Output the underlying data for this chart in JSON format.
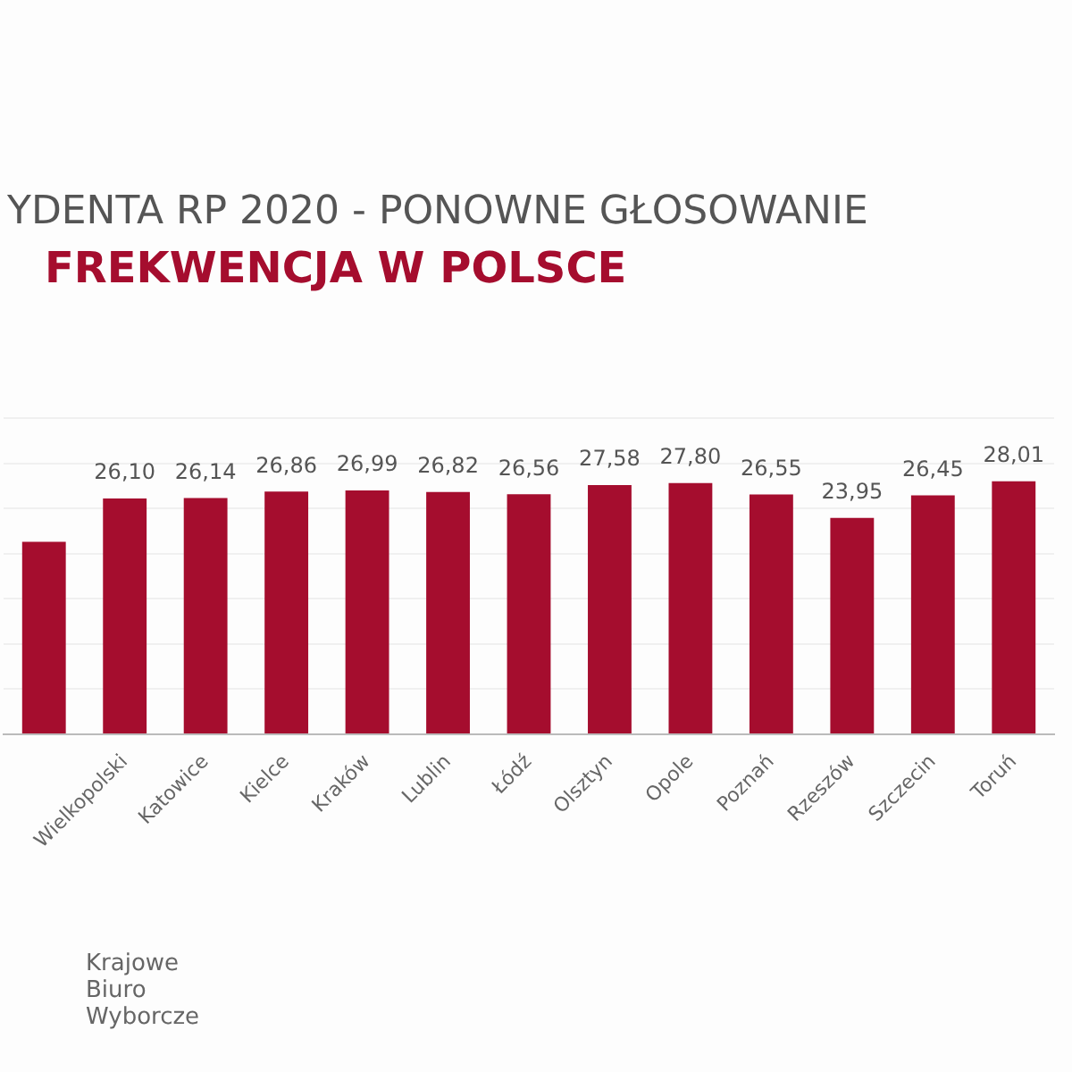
{
  "chart_data": {
    "type": "bar",
    "title": "YDENTA RP 2020 - PONOWNE GŁOSOWANIE",
    "subtitle": "FREKWENCJA W POLSCE",
    "categories": [
      null,
      "Wielkopolski",
      "Katowice",
      "Kielce",
      "Kraków",
      "Lublin",
      "Łódź",
      "Olsztyn",
      "Opole",
      "Poznań",
      "Rzeszów",
      "Szczecin",
      "Toruń"
    ],
    "values": [
      21.3,
      26.1,
      26.14,
      26.86,
      26.99,
      26.82,
      26.56,
      27.58,
      27.8,
      26.55,
      23.95,
      26.45,
      28.01
    ],
    "value_labels": [
      null,
      "26,10",
      "26,14",
      "26,86",
      "26,99",
      "26,82",
      "26,56",
      "27,58",
      "27,80",
      "26,55",
      "23,95",
      "26,45",
      "28,01"
    ],
    "color": "#a50d2e",
    "ylim": [
      0,
      35
    ],
    "yticks": [
      {
        "value": 0,
        "label": null
      },
      {
        "value": 5,
        "label": null
      },
      {
        "value": 10,
        "label": null
      },
      {
        "value": 15,
        "label": null
      },
      {
        "value": 20,
        "label": null
      },
      {
        "value": 25,
        "label": null
      },
      {
        "value": 30,
        "label": null
      },
      {
        "value": 35,
        "label": null
      }
    ],
    "tick_labels": "x",
    "grid": "y",
    "legend": false,
    "annotations": [
      "Krajowe Biuro Wyborcze"
    ]
  }
}
